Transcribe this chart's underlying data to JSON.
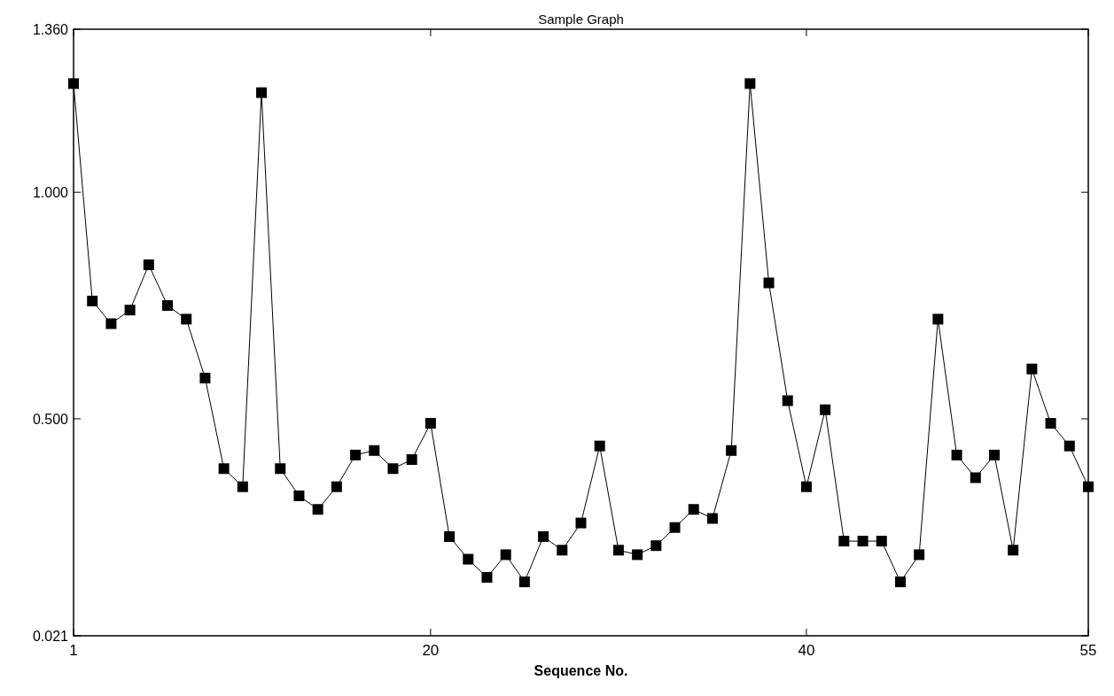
{
  "chart_data": {
    "type": "line",
    "title": "Sample Graph",
    "xlabel": "Sequence No.",
    "x": [
      1,
      2,
      3,
      4,
      5,
      6,
      7,
      8,
      9,
      10,
      11,
      12,
      13,
      14,
      15,
      16,
      17,
      18,
      19,
      20,
      21,
      22,
      23,
      24,
      25,
      26,
      27,
      28,
      29,
      30,
      31,
      32,
      33,
      34,
      35,
      36,
      37,
      38,
      39,
      40,
      41,
      42,
      43,
      44,
      45,
      46,
      47,
      48,
      49,
      50,
      51,
      52,
      53,
      54,
      55
    ],
    "series": [
      {
        "color": "#000000",
        "values": [
          1.24,
          0.76,
          0.71,
          0.74,
          0.84,
          0.75,
          0.72,
          0.59,
          0.39,
          0.35,
          1.22,
          0.39,
          0.33,
          0.3,
          0.35,
          0.42,
          0.43,
          0.39,
          0.41,
          0.49,
          0.24,
          0.19,
          0.15,
          0.2,
          0.14,
          0.24,
          0.21,
          0.27,
          0.44,
          0.21,
          0.2,
          0.22,
          0.26,
          0.3,
          0.28,
          0.43,
          1.24,
          0.8,
          0.54,
          0.35,
          0.52,
          0.23,
          0.23,
          0.23,
          0.14,
          0.2,
          0.72,
          0.42,
          0.37,
          0.42,
          0.21,
          0.61,
          0.49,
          0.44,
          0.35
        ]
      }
    ],
    "xlim": [
      1,
      55
    ],
    "xticks": [
      1,
      20,
      40,
      55
    ],
    "ylim": [
      0.021,
      1.36
    ],
    "yticks": [
      {
        "value": 0.021,
        "label": "0.021"
      },
      {
        "value": 0.5,
        "label": "0.500"
      },
      {
        "value": 1,
        "label": "1.000"
      },
      {
        "value": 1.36,
        "label": "1.360"
      }
    ],
    "marker": "square",
    "line_style": "solid"
  }
}
